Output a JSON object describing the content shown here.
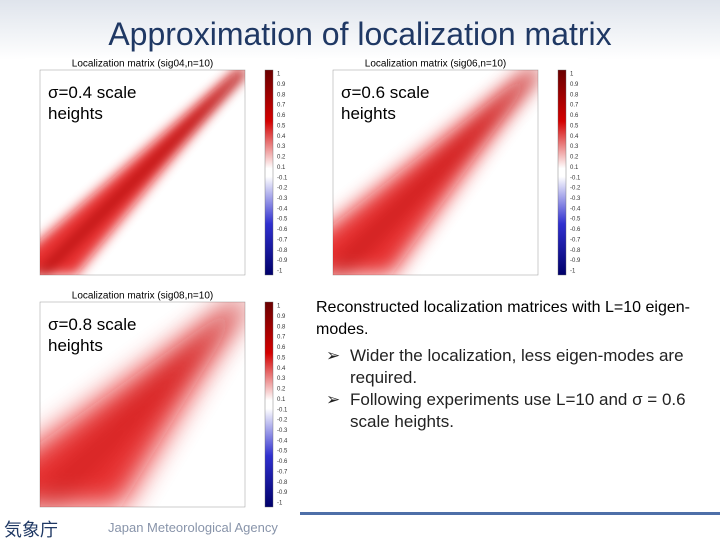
{
  "header": {
    "title": "Approximation of localization matrix"
  },
  "panels": [
    {
      "title": "Localization matrix (sig04,n=10)",
      "label": "σ=0.4 scale heights"
    },
    {
      "title": "Localization matrix (sig06,n=10)",
      "label": "σ=0.6 scale heights"
    },
    {
      "title": "Localization matrix (sig08,n=10)",
      "label": "σ=0.8 scale heights"
    }
  ],
  "colorbar_ticks": [
    "1",
    "0.9",
    "0.8",
    "0.7",
    "0.6",
    "0.5",
    "0.4",
    "0.3",
    "0.2",
    "0.1",
    "-0.1",
    "-0.2",
    "-0.3",
    "-0.4",
    "-0.5",
    "-0.6",
    "-0.7",
    "-0.8",
    "-0.9",
    "-1"
  ],
  "caption": "Reconstructed localization matrices with L=10 eigen-modes.",
  "bullets": [
    "Wider the localization, less eigen-modes are required.",
    "Following experiments use L=10 and σ = 0.6 scale heights."
  ],
  "footer": {
    "logo": "気象庁",
    "agency": "Japan Meteorological Agency"
  }
}
